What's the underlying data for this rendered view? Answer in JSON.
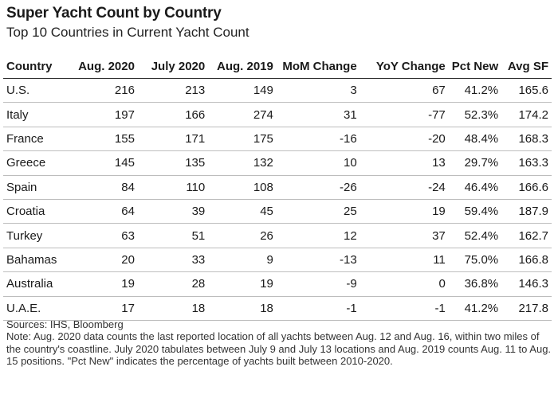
{
  "title": "Super Yacht Count by Country",
  "subtitle": "Top 10 Countries in Current Yacht Count",
  "chart_data": {
    "type": "table",
    "title": "Super Yacht Count by Country",
    "subtitle": "Top 10 Countries in Current Yacht Count",
    "columns": [
      "Country",
      "Aug. 2020",
      "July 2020",
      "Aug. 2019",
      "MoM Change",
      "YoY Change",
      "Pct New",
      "Avg SF"
    ],
    "rows": [
      [
        "U.S.",
        "216",
        "213",
        "149",
        "3",
        "67",
        "41.2%",
        "165.6"
      ],
      [
        "Italy",
        "197",
        "166",
        "274",
        "31",
        "-77",
        "52.3%",
        "174.2"
      ],
      [
        "France",
        "155",
        "171",
        "175",
        "-16",
        "-20",
        "48.4%",
        "168.3"
      ],
      [
        "Greece",
        "145",
        "135",
        "132",
        "10",
        "13",
        "29.7%",
        "163.3"
      ],
      [
        "Spain",
        "84",
        "110",
        "108",
        "-26",
        "-24",
        "46.4%",
        "166.6"
      ],
      [
        "Croatia",
        "64",
        "39",
        "45",
        "25",
        "19",
        "59.4%",
        "187.9"
      ],
      [
        "Turkey",
        "63",
        "51",
        "26",
        "12",
        "37",
        "52.4%",
        "162.7"
      ],
      [
        "Bahamas",
        "20",
        "33",
        "9",
        "-13",
        "11",
        "75.0%",
        "166.8"
      ],
      [
        "Australia",
        "19",
        "28",
        "19",
        "-9",
        "0",
        "36.8%",
        "146.3"
      ],
      [
        "U.A.E.",
        "17",
        "18",
        "18",
        "-1",
        "-1",
        "41.2%",
        "217.8"
      ]
    ]
  },
  "notes": {
    "source": "Sources: IHS, Bloomberg",
    "note": "Note: Aug. 2020 data counts the last reported location of all yachts between Aug. 12 and Aug. 16, within two miles of the country's coastline. July 2020 tabulates between July 9 and July 13 locations and Aug. 2019 counts Aug. 11 to Aug. 15 positions. \"Pct New\" indicates the percentage of yachts built between 2010-2020."
  }
}
